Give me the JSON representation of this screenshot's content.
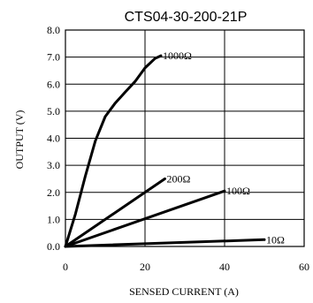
{
  "chart_data": {
    "type": "line",
    "title": "CTS04-30-200-21P",
    "xlabel": "SENSED CURRENT (A)",
    "ylabel": "OUTPUT (V)",
    "xlim": [
      0,
      60
    ],
    "ylim": [
      0,
      8
    ],
    "xticks": [
      "0",
      "20",
      "40",
      "60"
    ],
    "yticks": [
      "0.0",
      "1.0",
      "2.0",
      "3.0",
      "4.0",
      "5.0",
      "6.0",
      "7.0",
      "8.0"
    ],
    "grid": "vertical and horizontal",
    "series": [
      {
        "name": "1000Ω",
        "x": [
          0,
          2.5,
          5,
          7.5,
          10,
          12.5,
          15,
          17.5,
          20,
          22.5,
          24
        ],
        "y": [
          0,
          1.2,
          2.6,
          3.9,
          4.8,
          5.3,
          5.7,
          6.1,
          6.6,
          6.95,
          7.05
        ]
      },
      {
        "name": "200Ω",
        "x": [
          0,
          25
        ],
        "y": [
          0,
          2.5
        ]
      },
      {
        "name": "100Ω",
        "x": [
          0,
          40
        ],
        "y": [
          0,
          2.05
        ]
      },
      {
        "name": "10Ω",
        "x": [
          0,
          50
        ],
        "y": [
          0,
          0.25
        ]
      }
    ]
  }
}
